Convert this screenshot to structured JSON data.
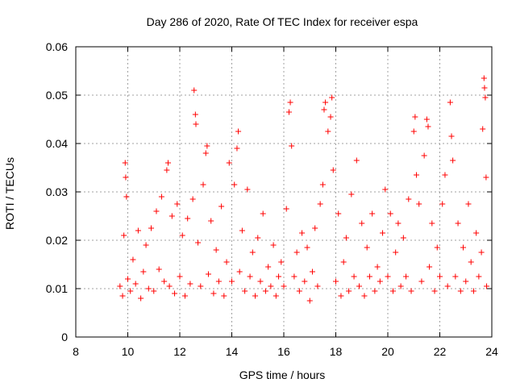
{
  "chart_data": {
    "type": "scatter",
    "title": "Day 286 of 2020, Rate Of TEC Index for receiver espa",
    "xlabel": "GPS time / hours",
    "ylabel": "ROTI / TECUs",
    "xlim": [
      8,
      24
    ],
    "ylim": [
      0,
      0.06
    ],
    "xticks": [
      8,
      10,
      12,
      14,
      16,
      18,
      20,
      22,
      24
    ],
    "xtick_labels": [
      "8",
      "10",
      "12",
      "14",
      "16",
      "18",
      "20",
      "22",
      "24"
    ],
    "yticks": [
      0,
      0.01,
      0.02,
      0.03,
      0.04,
      0.05,
      0.06
    ],
    "ytick_labels": [
      "0",
      "0.01",
      "0.02",
      "0.03",
      "0.04",
      "0.05",
      "0.06"
    ],
    "grid": true,
    "marker": "plus",
    "color": "#ff0000",
    "series": [
      {
        "name": "ROTI",
        "points": [
          [
            9.7,
            0.0105
          ],
          [
            9.8,
            0.0085
          ],
          [
            9.85,
            0.021
          ],
          [
            9.9,
            0.036
          ],
          [
            9.92,
            0.033
          ],
          [
            9.95,
            0.029
          ],
          [
            10.0,
            0.012
          ],
          [
            10.1,
            0.0095
          ],
          [
            10.2,
            0.016
          ],
          [
            10.3,
            0.011
          ],
          [
            10.4,
            0.022
          ],
          [
            10.5,
            0.008
          ],
          [
            10.6,
            0.0135
          ],
          [
            10.7,
            0.019
          ],
          [
            10.8,
            0.01
          ],
          [
            10.9,
            0.0225
          ],
          [
            11.0,
            0.0095
          ],
          [
            11.1,
            0.026
          ],
          [
            11.2,
            0.014
          ],
          [
            11.3,
            0.029
          ],
          [
            11.4,
            0.0115
          ],
          [
            11.5,
            0.0345
          ],
          [
            11.55,
            0.036
          ],
          [
            11.6,
            0.0105
          ],
          [
            11.7,
            0.025
          ],
          [
            11.8,
            0.009
          ],
          [
            11.9,
            0.0275
          ],
          [
            12.0,
            0.0125
          ],
          [
            12.1,
            0.021
          ],
          [
            12.2,
            0.0085
          ],
          [
            12.3,
            0.0245
          ],
          [
            12.4,
            0.011
          ],
          [
            12.5,
            0.0285
          ],
          [
            12.55,
            0.051
          ],
          [
            12.6,
            0.046
          ],
          [
            12.62,
            0.044
          ],
          [
            12.7,
            0.0195
          ],
          [
            12.8,
            0.0105
          ],
          [
            12.9,
            0.0315
          ],
          [
            13.0,
            0.038
          ],
          [
            13.05,
            0.0395
          ],
          [
            13.1,
            0.013
          ],
          [
            13.2,
            0.024
          ],
          [
            13.3,
            0.009
          ],
          [
            13.4,
            0.018
          ],
          [
            13.5,
            0.0115
          ],
          [
            13.6,
            0.027
          ],
          [
            13.7,
            0.0085
          ],
          [
            13.8,
            0.0155
          ],
          [
            13.9,
            0.036
          ],
          [
            14.0,
            0.0115
          ],
          [
            14.1,
            0.0315
          ],
          [
            14.2,
            0.039
          ],
          [
            14.25,
            0.0425
          ],
          [
            14.3,
            0.0135
          ],
          [
            14.4,
            0.022
          ],
          [
            14.5,
            0.0095
          ],
          [
            14.6,
            0.0305
          ],
          [
            14.7,
            0.0125
          ],
          [
            14.8,
            0.0175
          ],
          [
            14.9,
            0.0085
          ],
          [
            15.0,
            0.0205
          ],
          [
            15.1,
            0.0115
          ],
          [
            15.2,
            0.0255
          ],
          [
            15.3,
            0.0095
          ],
          [
            15.4,
            0.0145
          ],
          [
            15.5,
            0.0105
          ],
          [
            15.6,
            0.019
          ],
          [
            15.7,
            0.0085
          ],
          [
            15.8,
            0.0125
          ],
          [
            15.9,
            0.0155
          ],
          [
            16.0,
            0.0105
          ],
          [
            16.1,
            0.0265
          ],
          [
            16.2,
            0.0465
          ],
          [
            16.25,
            0.0485
          ],
          [
            16.3,
            0.0395
          ],
          [
            16.4,
            0.0125
          ],
          [
            16.5,
            0.0175
          ],
          [
            16.6,
            0.0095
          ],
          [
            16.7,
            0.0215
          ],
          [
            16.8,
            0.0115
          ],
          [
            16.9,
            0.0185
          ],
          [
            17.0,
            0.0075
          ],
          [
            17.1,
            0.0135
          ],
          [
            17.2,
            0.0225
          ],
          [
            17.3,
            0.0105
          ],
          [
            17.4,
            0.0275
          ],
          [
            17.5,
            0.0315
          ],
          [
            17.55,
            0.047
          ],
          [
            17.6,
            0.0485
          ],
          [
            17.7,
            0.0425
          ],
          [
            17.8,
            0.0455
          ],
          [
            17.85,
            0.0495
          ],
          [
            17.9,
            0.0345
          ],
          [
            18.0,
            0.0115
          ],
          [
            18.1,
            0.0255
          ],
          [
            18.2,
            0.0085
          ],
          [
            18.3,
            0.0155
          ],
          [
            18.4,
            0.0205
          ],
          [
            18.5,
            0.0095
          ],
          [
            18.6,
            0.0295
          ],
          [
            18.7,
            0.0125
          ],
          [
            18.8,
            0.0365
          ],
          [
            18.9,
            0.0105
          ],
          [
            19.0,
            0.0235
          ],
          [
            19.1,
            0.0085
          ],
          [
            19.2,
            0.0185
          ],
          [
            19.3,
            0.0125
          ],
          [
            19.4,
            0.0255
          ],
          [
            19.5,
            0.0095
          ],
          [
            19.6,
            0.0145
          ],
          [
            19.7,
            0.0115
          ],
          [
            19.8,
            0.0215
          ],
          [
            19.9,
            0.0305
          ],
          [
            20.0,
            0.0125
          ],
          [
            20.1,
            0.0255
          ],
          [
            20.2,
            0.0095
          ],
          [
            20.3,
            0.0175
          ],
          [
            20.4,
            0.0235
          ],
          [
            20.5,
            0.0105
          ],
          [
            20.6,
            0.0205
          ],
          [
            20.7,
            0.0125
          ],
          [
            20.8,
            0.0285
          ],
          [
            20.9,
            0.0095
          ],
          [
            21.0,
            0.0425
          ],
          [
            21.05,
            0.0455
          ],
          [
            21.1,
            0.0335
          ],
          [
            21.2,
            0.0275
          ],
          [
            21.3,
            0.0115
          ],
          [
            21.4,
            0.0375
          ],
          [
            21.5,
            0.045
          ],
          [
            21.55,
            0.0435
          ],
          [
            21.6,
            0.0145
          ],
          [
            21.7,
            0.0235
          ],
          [
            21.8,
            0.0095
          ],
          [
            21.9,
            0.0185
          ],
          [
            22.0,
            0.0125
          ],
          [
            22.1,
            0.0275
          ],
          [
            22.2,
            0.0335
          ],
          [
            22.3,
            0.0105
          ],
          [
            22.4,
            0.0485
          ],
          [
            22.45,
            0.0415
          ],
          [
            22.5,
            0.0365
          ],
          [
            22.6,
            0.0125
          ],
          [
            22.7,
            0.0235
          ],
          [
            22.8,
            0.0095
          ],
          [
            22.9,
            0.0185
          ],
          [
            23.0,
            0.0115
          ],
          [
            23.1,
            0.0275
          ],
          [
            23.2,
            0.0155
          ],
          [
            23.3,
            0.0095
          ],
          [
            23.4,
            0.0215
          ],
          [
            23.5,
            0.0125
          ],
          [
            23.6,
            0.0175
          ],
          [
            23.65,
            0.043
          ],
          [
            23.7,
            0.0535
          ],
          [
            23.72,
            0.0515
          ],
          [
            23.75,
            0.0495
          ],
          [
            23.78,
            0.033
          ],
          [
            23.8,
            0.0105
          ]
        ]
      }
    ]
  }
}
